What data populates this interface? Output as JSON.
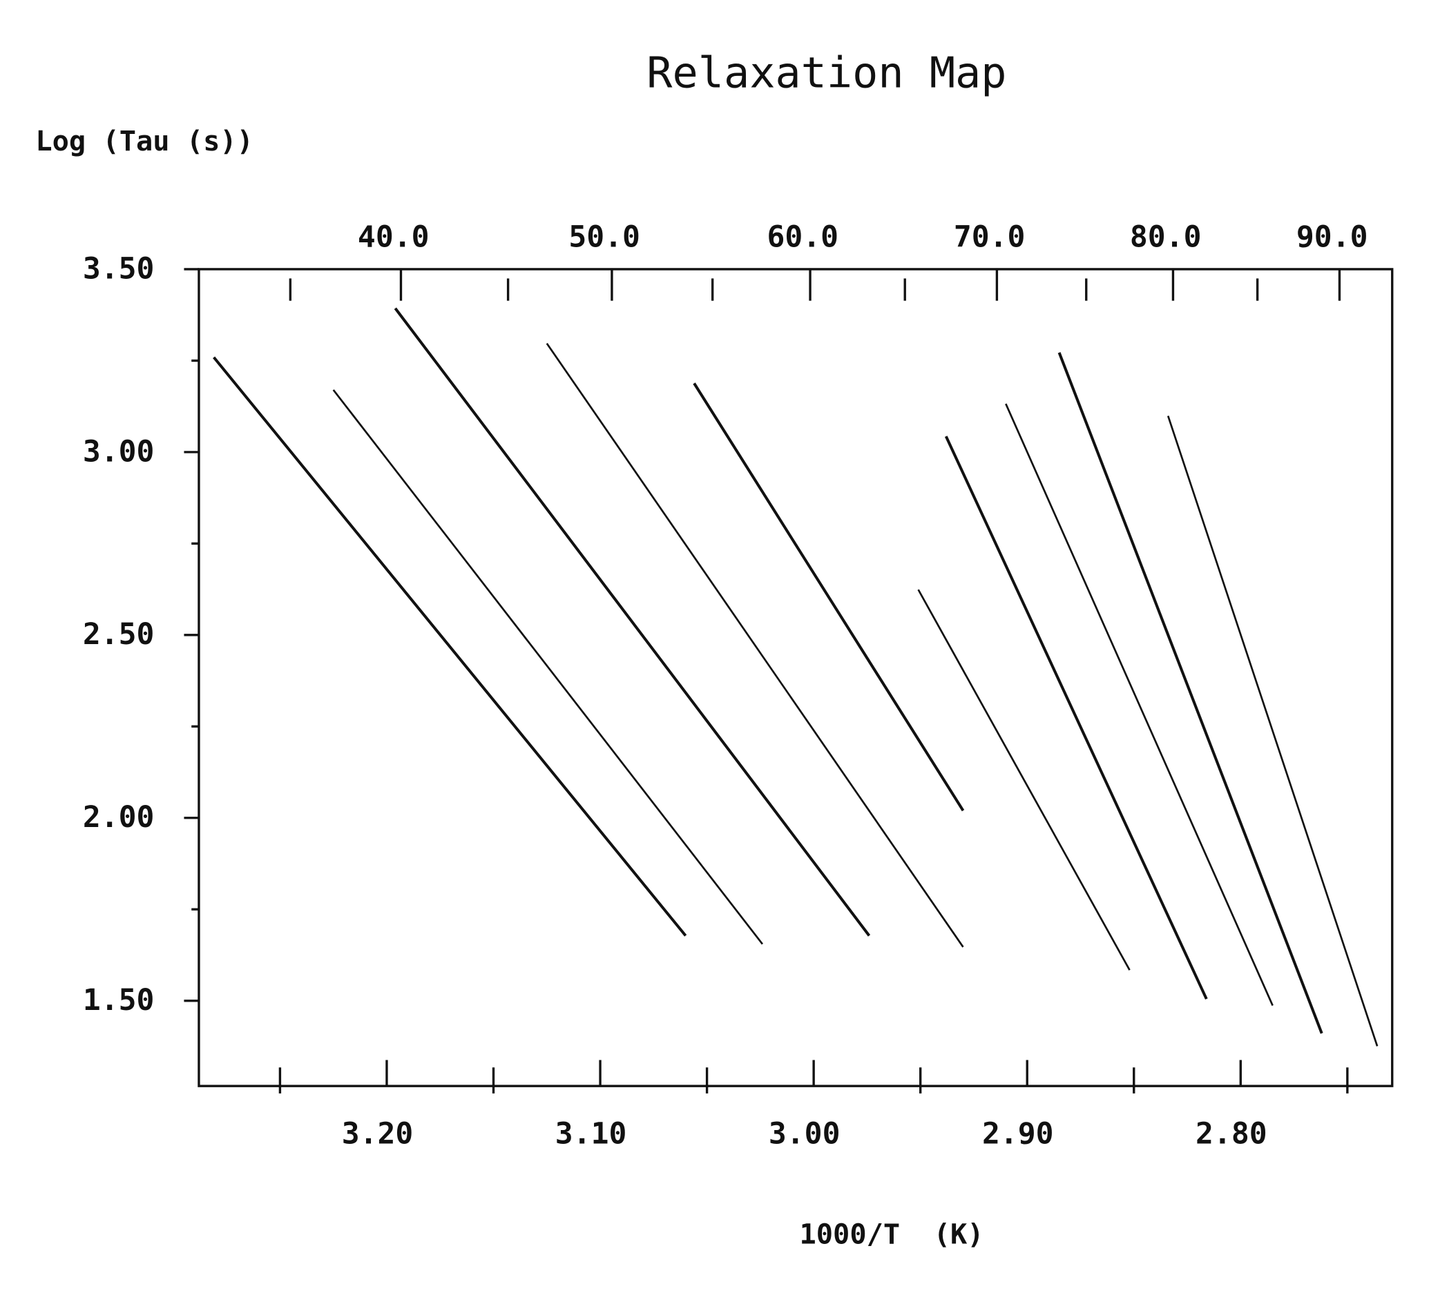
{
  "chart_data": {
    "type": "line",
    "title": "Relaxation Map",
    "ylabel": "Log (Tau (s))",
    "xlabel": "1000/T  (K)",
    "xlim": [
      3.288,
      2.729
    ],
    "ylim": [
      1.267,
      3.5
    ],
    "x_reversed": true,
    "grid": false,
    "x_ticks": [
      3.2,
      3.1,
      3.0,
      2.9,
      2.8
    ],
    "x_tick_labels": [
      "3.20",
      "3.10",
      "3.00",
      "2.90",
      "2.80"
    ],
    "x_minor_ticks": [
      3.25,
      3.15,
      3.05,
      2.95,
      2.85,
      2.75
    ],
    "y_ticks": [
      3.5,
      3.0,
      2.5,
      2.0,
      1.5
    ],
    "y_tick_labels": [
      "3.50",
      "3.00",
      "2.50",
      "2.00",
      "1.50"
    ],
    "y_minor_ticks": [
      3.25,
      2.75,
      2.25,
      1.75
    ],
    "top_axis": {
      "unit_note": "",
      "ticks": [
        40,
        50,
        60,
        70,
        80,
        90
      ],
      "tick_labels": [
        "40.0",
        "50.0",
        "60.0",
        "70.0",
        "80.0",
        "90.0"
      ],
      "minor_ticks": [
        35,
        45,
        55,
        65,
        75,
        85
      ]
    },
    "series": [
      {
        "x": [
          3.281,
          3.06
        ],
        "y": [
          3.259,
          1.678
        ]
      },
      {
        "x": [
          3.225,
          3.024
        ],
        "y": [
          3.17,
          1.655
        ]
      },
      {
        "x": [
          3.196,
          2.974
        ],
        "y": [
          3.393,
          1.678
        ]
      },
      {
        "x": [
          3.125,
          2.93
        ],
        "y": [
          3.297,
          1.647
        ]
      },
      {
        "x": [
          3.056,
          2.93
        ],
        "y": [
          3.188,
          2.02
        ]
      },
      {
        "x": [
          2.951,
          2.852
        ],
        "y": [
          2.624,
          1.584
        ]
      },
      {
        "x": [
          2.938,
          2.816
        ],
        "y": [
          3.043,
          1.505
        ]
      },
      {
        "x": [
          2.91,
          2.785
        ],
        "y": [
          3.132,
          1.487
        ]
      },
      {
        "x": [
          2.885,
          2.762
        ],
        "y": [
          3.272,
          1.411
        ]
      },
      {
        "x": [
          2.834,
          2.736
        ],
        "y": [
          3.099,
          1.376
        ]
      }
    ],
    "line_color": "#111111"
  }
}
